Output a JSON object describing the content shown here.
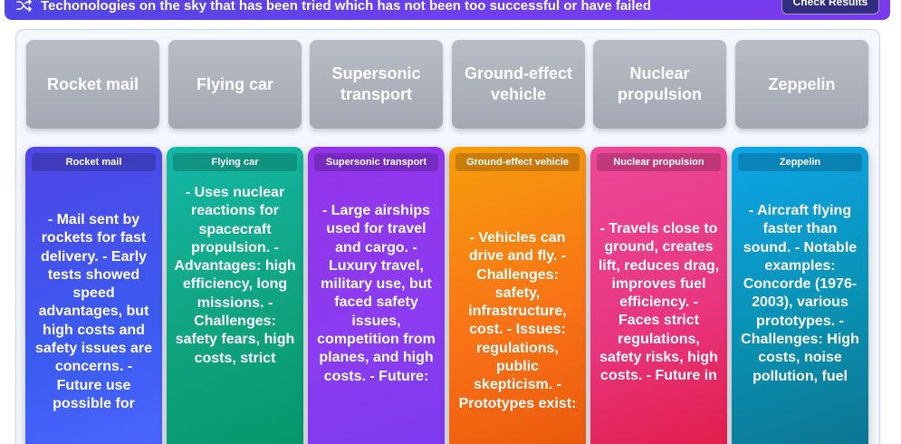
{
  "header": {
    "title": "Techonologies on the sky that has been tried which has not been too successful or have failed",
    "shuffle_icon": "shuffle-icon",
    "check_button_label": "Check Results"
  },
  "tiles": [
    {
      "label": "Rocket mail"
    },
    {
      "label": "Flying car"
    },
    {
      "label": "Supersonic transport"
    },
    {
      "label": "Ground-effect vehicle"
    },
    {
      "label": "Nuclear propulsion"
    },
    {
      "label": "Zeppelin"
    }
  ],
  "cards": [
    {
      "label": "Rocket mail",
      "text": "- Mail sent by rockets for fast delivery. - Early tests showed speed advantages, but high costs and safety issues are concerns. - Future use possible for"
    },
    {
      "label": "Flying car",
      "text": "- Uses nuclear reactions for spacecraft propulsion. - Advantages: high efficiency, long missions. - Challenges: safety fears, high costs, strict"
    },
    {
      "label": "Supersonic transport",
      "text": "- Large airships used for travel and cargo. - Luxury travel, military use, but faced safety issues, competition from planes, and high costs. - Future:"
    },
    {
      "label": "Ground-effect vehicle",
      "text": "- Vehicles can drive and fly. - Challenges: safety, infrastructure, cost. - Issues: regulations, public skepticism. - Prototypes exist:"
    },
    {
      "label": "Nuclear propulsion",
      "text": "- Travels close to ground, creates lift, reduces drag, improves fuel efficiency. - Faces strict regulations, safety risks, high costs. - Future in"
    },
    {
      "label": "Zeppelin",
      "text": "- Aircraft flying faster than sound. - Notable examples: Concorde (1976-2003), various prototypes. - Challenges: High costs, noise pollution, fuel"
    }
  ],
  "colors": {
    "topbar": "#5b43ea",
    "tile": "#adb1ba",
    "card_1": "#4a55ec",
    "card_2": "#10a37f",
    "card_3": "#8b3cf0",
    "card_4": "#f97316",
    "card_5": "#e8367f",
    "card_6": "#0891b2"
  }
}
